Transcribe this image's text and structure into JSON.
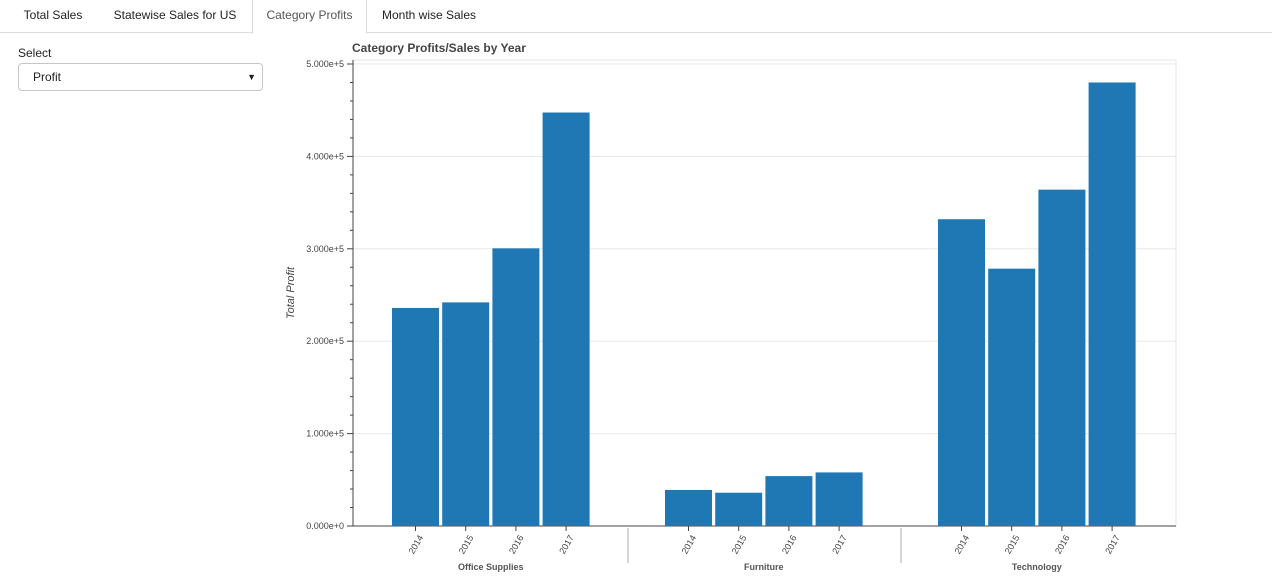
{
  "tabs": [
    {
      "label": "Total Sales"
    },
    {
      "label": "Statewise Sales for US"
    },
    {
      "label": "Category Profits"
    },
    {
      "label": "Month wise Sales"
    }
  ],
  "select": {
    "label": "Select",
    "value": "Profit"
  },
  "chart_data": {
    "type": "bar",
    "title": "Category Profits/Sales by Year",
    "ylabel": "Total Profit",
    "xlabel": "",
    "ylim": [
      0,
      500000
    ],
    "yticks": [
      "0.000e+0",
      "1.000e+5",
      "2.000e+5",
      "3.000e+5",
      "4.000e+5",
      "5.000e+5"
    ],
    "grid": true,
    "color": "#1f77b4",
    "groups": [
      {
        "category": "Office Supplies",
        "years": [
          "2014",
          "2015",
          "2016",
          "2017"
        ],
        "values": [
          236000,
          242000,
          300500,
          447500
        ]
      },
      {
        "category": "Furniture",
        "years": [
          "2014",
          "2015",
          "2016",
          "2017"
        ],
        "values": [
          39000,
          36000,
          54000,
          58000
        ]
      },
      {
        "category": "Technology",
        "years": [
          "2014",
          "2015",
          "2016",
          "2017"
        ],
        "values": [
          332000,
          278500,
          364000,
          480000
        ]
      }
    ]
  }
}
